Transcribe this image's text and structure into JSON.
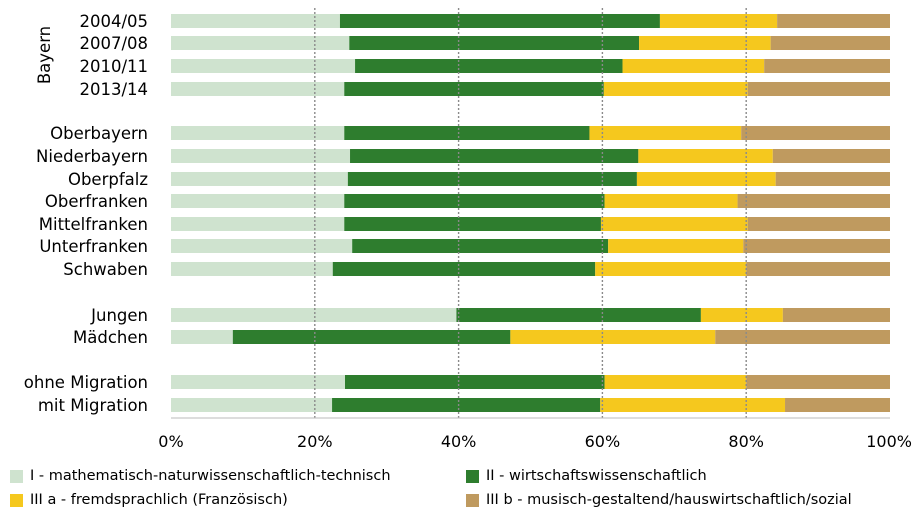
{
  "chart_data": {
    "type": "bar",
    "orientation": "horizontal",
    "stacked": true,
    "title": "",
    "xlabel": "",
    "ylabel": "",
    "xlim": [
      0,
      100
    ],
    "x_tick_labels": [
      "0%",
      "20%",
      "40%",
      "60%",
      "80%",
      "100%"
    ],
    "grid": "vertical dotted at 20/40/60/80",
    "legend_position": "bottom",
    "groups": [
      {
        "label": "Bayern",
        "categories": [
          "2004/05",
          "2007/08",
          "2010/11",
          "2013/14"
        ]
      },
      {
        "label": "",
        "categories": [
          "Oberbayern",
          "Niederbayern",
          "Oberpfalz",
          "Oberfranken",
          "Mittelfranken",
          "Unterfranken",
          "Schwaben"
        ]
      },
      {
        "label": "",
        "categories": [
          "Jungen",
          "Mädchen"
        ]
      },
      {
        "label": "",
        "categories": [
          "ohne Migration",
          "mit Migration"
        ]
      }
    ],
    "categories": [
      "2004/05",
      "2007/08",
      "2010/11",
      "2013/14",
      "Oberbayern",
      "Niederbayern",
      "Oberpfalz",
      "Oberfranken",
      "Mittelfranken",
      "Unterfranken",
      "Schwaben",
      "Jungen",
      "Mädchen",
      "ohne Migration",
      "mit Migration"
    ],
    "series": [
      {
        "name": "I - mathematisch-naturwissenschaftlich-technisch",
        "color": "#cfe3cf",
        "values": [
          23.5,
          24.8,
          25.6,
          24.1,
          24.1,
          24.9,
          24.6,
          24.1,
          24.1,
          25.2,
          22.5,
          39.7,
          8.6,
          24.2,
          22.4
        ]
      },
      {
        "name": "II - wirtschaftswissenschaftlich",
        "color": "#2e7d2e",
        "values": [
          44.5,
          40.3,
          37.2,
          36.1,
          34.1,
          40.1,
          40.2,
          36.2,
          35.7,
          35.6,
          36.5,
          34.0,
          38.6,
          36.1,
          37.3
        ]
      },
      {
        "name": "III a - fremdsprachlich (Französisch)",
        "color": "#f5c81e",
        "values": [
          16.3,
          18.3,
          19.7,
          20.0,
          21.1,
          18.7,
          19.3,
          18.5,
          20.4,
          18.8,
          21.0,
          11.4,
          28.5,
          19.7,
          25.7
        ]
      },
      {
        "name": "III b - musisch-gestaltend/hauswirtschaftlich/sozial",
        "color": "#bf9a5f",
        "values": [
          15.7,
          16.6,
          17.5,
          19.8,
          20.7,
          16.3,
          15.9,
          21.2,
          19.8,
          20.4,
          20.0,
          14.9,
          24.3,
          20.0,
          14.6
        ]
      }
    ]
  }
}
